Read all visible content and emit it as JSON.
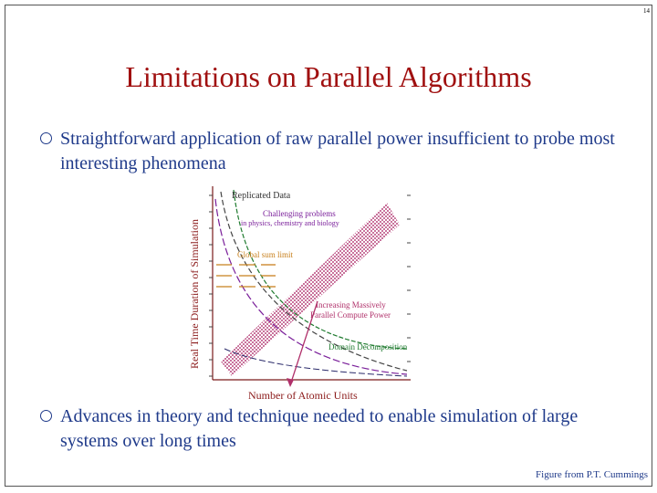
{
  "page": {
    "number": "14"
  },
  "slide": {
    "title": "Limitations on Parallel Algorithms",
    "bullets": [
      "Straightforward application of raw parallel power insufficient to probe most interesting phenomena",
      "Advances in theory and technique needed to enable simulation of large systems over long times"
    ],
    "credit": "Figure from P.T. Cummings"
  },
  "chart_data": {
    "type": "line",
    "xlabel": "Number of Atomic Units",
    "ylabel": "Real Time Duration of Simulation",
    "annotations": [
      "Replicated Data",
      "Challenging problems",
      "in physics, chemistry and biology",
      "Global sum limit",
      "Increasing Massively",
      "Parallel Compute Power",
      "Domain Decomposition"
    ],
    "colors": {
      "replicated": "#444444",
      "challenging": "#7a1f9a",
      "global_sum": "#c8801e",
      "domain": "#1e7a2e",
      "arrow": "#b0306a",
      "band": "#c05a8a",
      "axis": "#7a1a1a"
    }
  }
}
